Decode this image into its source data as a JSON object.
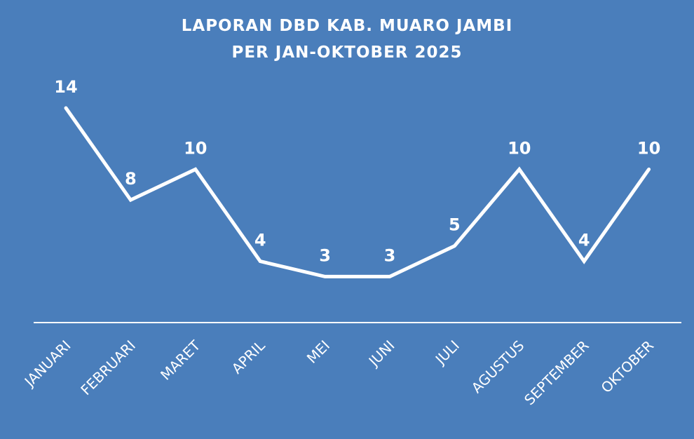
{
  "chart_data": {
    "type": "line",
    "title": [
      "LAPORAN DBD KAB. MUARO JAMBI",
      "PER JAN-OKTOBER  2025"
    ],
    "categories": [
      "JANUARI",
      "FEBRUARI",
      "MARET",
      "APRIL",
      "MEI",
      "JUNI",
      "JULI",
      "AGUSTUS",
      "SEPTEMBER",
      "OKTOBER"
    ],
    "values": [
      14,
      8,
      10,
      4,
      3,
      3,
      5,
      10,
      4,
      10
    ],
    "ylim": [
      0,
      15
    ],
    "grid": false,
    "legend": false,
    "drop_lines": true,
    "data_labels": true,
    "colors": {
      "background": "#4a7ebb",
      "line": "#ffffff",
      "text": "#ffffff"
    }
  }
}
